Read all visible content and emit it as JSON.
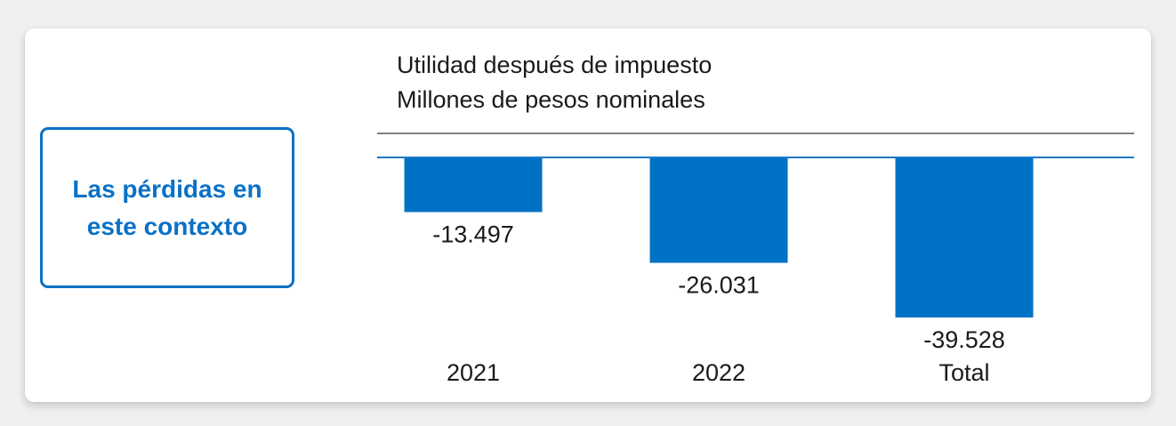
{
  "colors": {
    "bar": "#0072c6",
    "accent": "#0a71c6",
    "header_rule": "#555555",
    "zero_line": "#1a79c8",
    "text": "#1a1a1a"
  },
  "callout": {
    "text": "Las pérdidas en este contexto"
  },
  "chart_data": {
    "type": "bar",
    "title": "Utilidad después de impuesto",
    "subtitle": "Millones de pesos nominales",
    "categories": [
      "2021",
      "2022",
      "Total"
    ],
    "values": [
      -13.497,
      -26.031,
      -39.528
    ],
    "value_labels": [
      "-13.497",
      "-26.031",
      "-39.528"
    ],
    "xlabel": "",
    "ylabel": "",
    "ylim": [
      -40,
      0
    ],
    "grid": false,
    "legend": "none"
  }
}
